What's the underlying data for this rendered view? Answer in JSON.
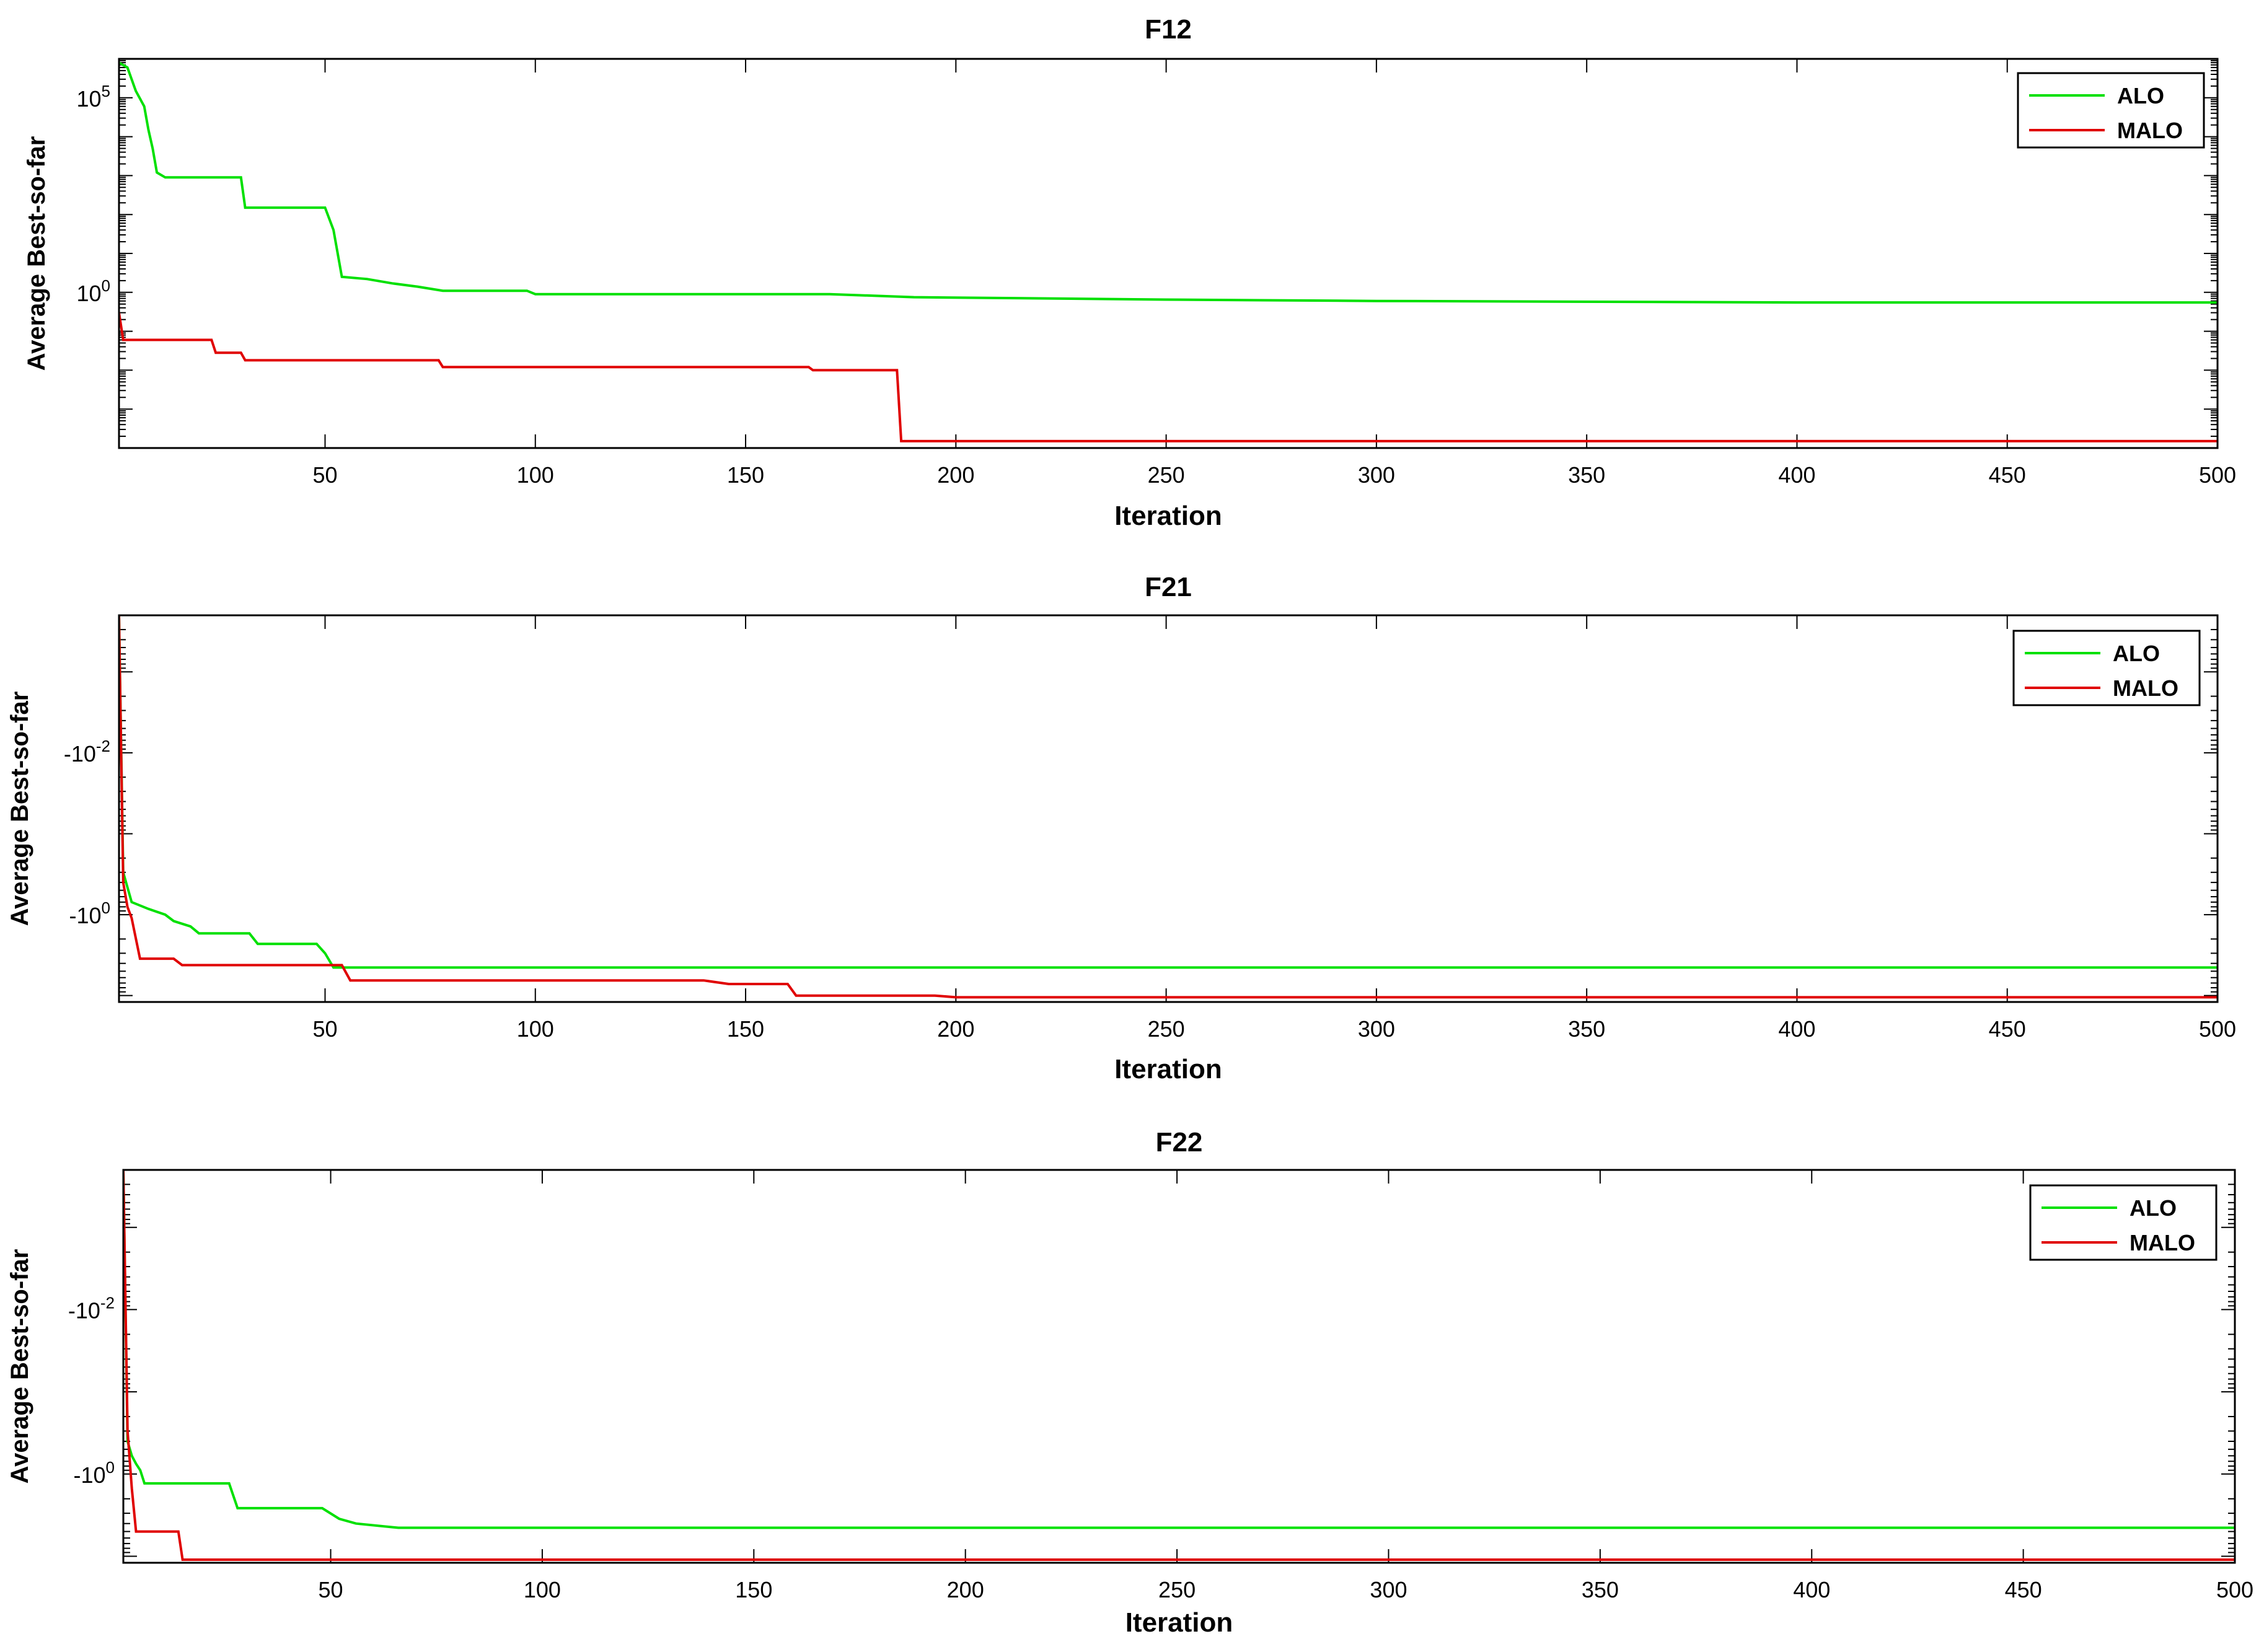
{
  "colors": {
    "ALO": "#00e000",
    "MALO": "#e00000",
    "axis": "#000000"
  },
  "chart_data": [
    {
      "type": "line",
      "title": "F12",
      "xlabel": "Iteration",
      "ylabel": "Average Best-so-far",
      "yscale": "log",
      "xlim": [
        1,
        500
      ],
      "ylim": [
        0.0001,
        1000000.0
      ],
      "xticks": [
        50,
        100,
        150,
        200,
        250,
        300,
        350,
        400,
        450,
        500
      ],
      "yticks": [
        {
          "value": 100000.0,
          "label": "10",
          "exp": "5"
        },
        {
          "value": 1,
          "label": "10",
          "exp": "0"
        }
      ],
      "legend_position": "top-right",
      "series": [
        {
          "name": "ALO",
          "color": "#00e000",
          "x": [
            1,
            3,
            5,
            7,
            8,
            9,
            10,
            12,
            14,
            30,
            31,
            50,
            52,
            54,
            60,
            66,
            72,
            78,
            98,
            100,
            170,
            190,
            250,
            300,
            400,
            500
          ],
          "y": [
            800000,
            600000,
            150000,
            60000,
            15000,
            5000,
            1200,
            900,
            900,
            900,
            150,
            150,
            40,
            2.5,
            2.2,
            1.7,
            1.4,
            1.1,
            1.1,
            0.9,
            0.9,
            0.75,
            0.65,
            0.6,
            0.55,
            0.55
          ]
        },
        {
          "name": "MALO",
          "color": "#e00000",
          "x": [
            1,
            2,
            23,
            24,
            30,
            31,
            77,
            78,
            165,
            166,
            186,
            187,
            500
          ],
          "y": [
            0.3,
            0.06,
            0.06,
            0.028,
            0.028,
            0.018,
            0.018,
            0.012,
            0.012,
            0.01,
            0.01,
            0.00015,
            0.00015
          ]
        }
      ]
    },
    {
      "type": "line",
      "title": "F21",
      "xlabel": "Iteration",
      "ylabel": "Average Best-so-far",
      "yscale": "log (negative)",
      "xlim": [
        1,
        500
      ],
      "ylim": [
        -0.0002,
        -12
      ],
      "xticks": [
        50,
        100,
        150,
        200,
        250,
        300,
        350,
        400,
        450,
        500
      ],
      "yticks": [
        {
          "value": -0.01,
          "label": "-10",
          "exp": "-2"
        },
        {
          "value": -1,
          "label": "-10",
          "exp": "0"
        }
      ],
      "legend_position": "top-right",
      "series": [
        {
          "name": "ALO",
          "color": "#00e000",
          "x": [
            1,
            2,
            4,
            8,
            12,
            14,
            18,
            20,
            32,
            34,
            48,
            50,
            52,
            70,
            500
          ],
          "y": [
            -0.0002,
            -0.3,
            -0.7,
            -0.85,
            -1.0,
            -1.2,
            -1.4,
            -1.7,
            -1.7,
            -2.3,
            -2.3,
            -3.0,
            -4.5,
            -4.5,
            -4.5
          ]
        },
        {
          "name": "MALO",
          "color": "#e00000",
          "x": [
            1,
            2,
            3,
            4,
            6,
            14,
            16,
            54,
            56,
            140,
            146,
            160,
            162,
            195,
            200,
            500
          ],
          "y": [
            -0.0002,
            -0.4,
            -0.8,
            -1.1,
            -3.5,
            -3.5,
            -4.2,
            -4.2,
            -6.5,
            -6.5,
            -7.2,
            -7.2,
            -10.0,
            -10.0,
            -10.5,
            -10.5
          ]
        }
      ]
    },
    {
      "type": "line",
      "title": "F22",
      "xlabel": "Iteration",
      "ylabel": "Average Best-so-far",
      "yscale": "log (negative)",
      "xlim": [
        1,
        500
      ],
      "ylim": [
        -0.0002,
        -12
      ],
      "xticks": [
        50,
        100,
        150,
        200,
        250,
        300,
        350,
        400,
        450,
        500
      ],
      "yticks": [
        {
          "value": -0.01,
          "label": "-10",
          "exp": "-2"
        },
        {
          "value": -1,
          "label": "-10",
          "exp": "0"
        }
      ],
      "legend_position": "top-right",
      "series": [
        {
          "name": "ALO",
          "color": "#00e000",
          "x": [
            1,
            2,
            3,
            4,
            5,
            6,
            26,
            28,
            48,
            52,
            56,
            66,
            500
          ],
          "y": [
            -0.0002,
            -0.4,
            -0.6,
            -0.75,
            -0.9,
            -1.3,
            -1.3,
            -2.6,
            -2.6,
            -3.5,
            -4.0,
            -4.5,
            -4.5
          ]
        },
        {
          "name": "MALO",
          "color": "#e00000",
          "x": [
            1,
            2,
            3,
            4,
            14,
            15,
            500
          ],
          "y": [
            -0.0002,
            -0.3,
            -1.5,
            -5.0,
            -5.0,
            -11.0,
            -11.0
          ]
        }
      ]
    }
  ]
}
